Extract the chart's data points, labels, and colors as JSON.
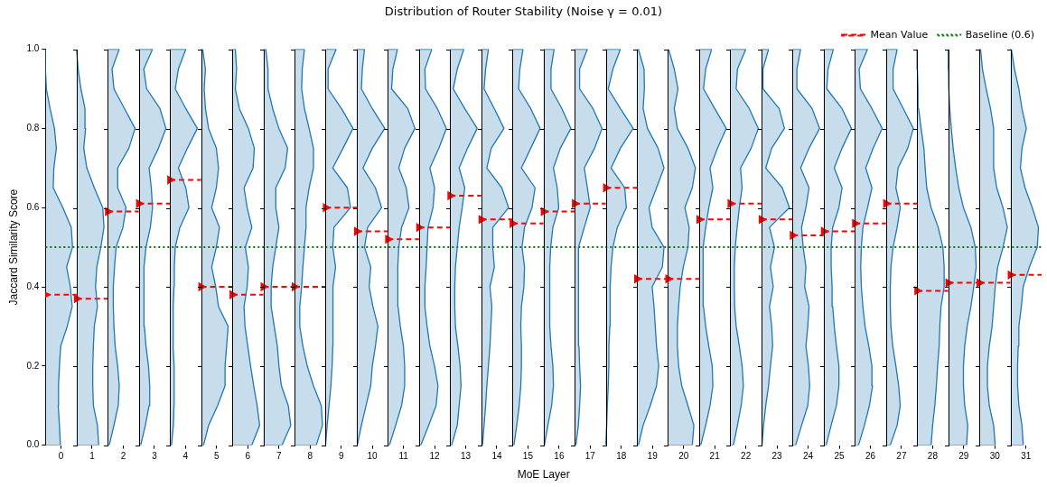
{
  "chart_data": {
    "type": "area",
    "title": "Distribution of Router Stability (Noise γ = 0.01)",
    "xlabel": "MoE Layer",
    "ylabel": "Jaccard Similarity Score",
    "xlim": [
      -0.5,
      31.5
    ],
    "xticks": [
      0,
      1,
      2,
      3,
      4,
      5,
      6,
      7,
      8,
      9,
      10,
      11,
      12,
      13,
      14,
      15,
      16,
      17,
      18,
      19,
      20,
      21,
      22,
      23,
      24,
      25,
      26,
      27,
      28,
      29,
      30,
      31
    ],
    "ylim": [
      0,
      1
    ],
    "yticks": [
      {
        "value": 0,
        "label": "0.0"
      },
      {
        "value": 0.2,
        "label": "0.2"
      },
      {
        "value": 0.4,
        "label": "0.4"
      },
      {
        "value": 0.6,
        "label": "0.6"
      },
      {
        "value": 0.8,
        "label": "0.8"
      },
      {
        "value": 1,
        "label": "1.0"
      }
    ],
    "grid": false,
    "legend": "top right",
    "ref_lines": [
      {
        "axis": "y",
        "value": 0.5,
        "label": "Baseline (0.6)",
        "color": "#008000",
        "line_style": "dotted"
      }
    ],
    "series": [
      {
        "color": "#1f77b4",
        "x": [
          -0.5,
          -0.02,
          -0.05,
          -0.09,
          -0.08,
          -0.05,
          -0.01,
          0.2,
          0.36,
          0.3,
          0.18,
          0.37,
          0.33,
          0.06,
          -0.25,
          -0.23,
          -0.15,
          -0.21,
          -0.35,
          -0.47,
          -0.5,
          -0.5,
          -0.5
        ],
        "values": [
          0,
          0,
          0.05,
          0.1,
          0.15,
          0.2,
          0.25,
          0.3,
          0.35,
          0.4,
          0.45,
          0.5,
          0.55,
          0.6,
          0.65,
          0.7,
          0.75,
          0.8,
          0.85,
          0.9,
          0.95,
          1,
          1
        ]
      },
      {
        "color": "#1f77b4",
        "x": [
          0.5,
          1.21,
          1.17,
          1.04,
          1.02,
          1.02,
          1.04,
          1.07,
          1.17,
          1.11,
          1.15,
          1.28,
          1.38,
          1.34,
          1.07,
          0.83,
          0.73,
          0.79,
          0.77,
          0.64,
          0.55,
          0.5,
          0.5
        ],
        "values": [
          0,
          0,
          0.05,
          0.1,
          0.15,
          0.2,
          0.25,
          0.3,
          0.35,
          0.4,
          0.45,
          0.5,
          0.55,
          0.6,
          0.65,
          0.7,
          0.75,
          0.8,
          0.85,
          0.9,
          0.95,
          1,
          1
        ]
      },
      {
        "color": "#1f77b4",
        "x": [
          1.5,
          1.55,
          1.7,
          1.84,
          1.87,
          1.82,
          1.74,
          1.7,
          1.68,
          1.68,
          1.72,
          1.77,
          1.99,
          2.09,
          1.82,
          1.82,
          2.18,
          2.38,
          2.04,
          1.7,
          1.64,
          1.87,
          1.5
        ],
        "values": [
          0,
          0,
          0.05,
          0.1,
          0.15,
          0.2,
          0.25,
          0.3,
          0.35,
          0.4,
          0.45,
          0.5,
          0.55,
          0.6,
          0.65,
          0.7,
          0.75,
          0.8,
          0.85,
          0.9,
          0.95,
          1,
          1
        ]
      },
      {
        "color": "#1f77b4",
        "x": [
          2.5,
          2.56,
          2.71,
          2.83,
          2.85,
          2.81,
          2.73,
          2.68,
          2.66,
          2.66,
          2.68,
          2.73,
          2.87,
          2.94,
          2.9,
          2.83,
          3.13,
          3.37,
          3.18,
          2.75,
          2.66,
          2.94,
          2.5
        ],
        "values": [
          0,
          0,
          0.05,
          0.1,
          0.15,
          0.2,
          0.25,
          0.3,
          0.35,
          0.4,
          0.45,
          0.5,
          0.55,
          0.6,
          0.65,
          0.7,
          0.75,
          0.8,
          0.85,
          0.9,
          0.95,
          1,
          1
        ]
      },
      {
        "color": "#1f77b4",
        "x": [
          3.5,
          3.55,
          3.61,
          3.63,
          3.64,
          3.63,
          3.6,
          3.6,
          3.61,
          3.63,
          3.64,
          3.67,
          3.82,
          4.11,
          4.01,
          3.77,
          4.06,
          4.38,
          4.01,
          3.67,
          3.77,
          4.01,
          3.5
        ],
        "values": [
          0,
          0,
          0.05,
          0.1,
          0.15,
          0.2,
          0.25,
          0.3,
          0.35,
          0.4,
          0.45,
          0.5,
          0.55,
          0.6,
          0.65,
          0.7,
          0.75,
          0.8,
          0.85,
          0.9,
          0.95,
          1,
          1
        ]
      },
      {
        "color": "#1f77b4",
        "x": [
          4.5,
          4.58,
          4.74,
          5.03,
          5.27,
          5.27,
          5.32,
          5.37,
          5.06,
          4.97,
          4.84,
          4.99,
          5.09,
          4.84,
          4.99,
          5.06,
          4.99,
          4.74,
          4.64,
          4.6,
          4.64,
          4.55,
          4.5
        ],
        "values": [
          0,
          0,
          0.05,
          0.1,
          0.15,
          0.2,
          0.25,
          0.3,
          0.35,
          0.4,
          0.45,
          0.5,
          0.55,
          0.6,
          0.65,
          0.7,
          0.75,
          0.8,
          0.85,
          0.9,
          0.95,
          1,
          1
        ]
      },
      {
        "color": "#1f77b4",
        "x": [
          5.5,
          6.13,
          6.38,
          6.3,
          6.19,
          6.09,
          6,
          5.91,
          5.88,
          5.98,
          6.02,
          5.92,
          6.13,
          5.98,
          5.88,
          6.17,
          6.21,
          6.02,
          5.73,
          5.6,
          5.64,
          5.6,
          5.5
        ],
        "values": [
          0,
          0,
          0.05,
          0.1,
          0.15,
          0.2,
          0.25,
          0.3,
          0.35,
          0.4,
          0.45,
          0.5,
          0.55,
          0.6,
          0.65,
          0.7,
          0.75,
          0.8,
          0.85,
          0.9,
          0.95,
          1,
          1
        ]
      },
      {
        "color": "#1f77b4",
        "x": [
          6.5,
          7.1,
          7.38,
          7.3,
          7.08,
          7,
          6.95,
          6.85,
          6.75,
          6.75,
          6.8,
          6.9,
          7,
          6.9,
          6.9,
          7.2,
          7.28,
          7,
          6.8,
          6.65,
          6.65,
          6.58,
          6.5
        ],
        "values": [
          0,
          0,
          0.05,
          0.1,
          0.15,
          0.2,
          0.25,
          0.3,
          0.35,
          0.4,
          0.45,
          0.5,
          0.55,
          0.6,
          0.65,
          0.7,
          0.75,
          0.8,
          0.85,
          0.9,
          0.95,
          1,
          1
        ]
      },
      {
        "color": "#1f77b4",
        "x": [
          7.5,
          8.2,
          8.4,
          8.36,
          8.11,
          7.91,
          7.77,
          7.67,
          7.67,
          7.73,
          7.77,
          7.82,
          7.87,
          7.87,
          7.97,
          8.11,
          8.11,
          7.97,
          7.82,
          7.73,
          7.75,
          7.82,
          7.5
        ],
        "values": [
          0,
          0,
          0.05,
          0.1,
          0.15,
          0.2,
          0.25,
          0.3,
          0.35,
          0.4,
          0.45,
          0.5,
          0.55,
          0.6,
          0.65,
          0.7,
          0.75,
          0.8,
          0.85,
          0.9,
          0.95,
          1,
          1
        ]
      },
      {
        "color": "#1f77b4",
        "x": [
          8.5,
          8.51,
          8.55,
          8.61,
          8.67,
          8.71,
          8.73,
          8.74,
          8.73,
          8.74,
          8.82,
          8.73,
          8.77,
          9.3,
          9.2,
          8.73,
          9.06,
          9.38,
          9.01,
          8.58,
          8.58,
          8.84,
          8.5
        ],
        "values": [
          0,
          0,
          0.05,
          0.1,
          0.15,
          0.2,
          0.25,
          0.3,
          0.35,
          0.4,
          0.45,
          0.5,
          0.55,
          0.6,
          0.65,
          0.7,
          0.75,
          0.8,
          0.85,
          0.9,
          0.95,
          1,
          1
        ]
      },
      {
        "color": "#1f77b4",
        "x": [
          9.5,
          9.52,
          9.65,
          9.8,
          9.95,
          10,
          10.1,
          10.18,
          10.02,
          9.9,
          9.95,
          9.75,
          9.85,
          10.3,
          10.1,
          9.7,
          10,
          10.4,
          10,
          9.65,
          9.68,
          9.75,
          9.5
        ],
        "values": [
          0,
          0,
          0.05,
          0.1,
          0.15,
          0.2,
          0.25,
          0.3,
          0.35,
          0.4,
          0.45,
          0.5,
          0.55,
          0.6,
          0.65,
          0.7,
          0.75,
          0.8,
          0.85,
          0.9,
          0.95,
          1,
          1
        ]
      },
      {
        "color": "#1f77b4",
        "x": [
          10.5,
          10.55,
          10.75,
          10.94,
          11.04,
          11.04,
          11,
          10.9,
          10.83,
          10.81,
          10.83,
          10.85,
          10.94,
          11.18,
          11.09,
          10.85,
          11.04,
          11.37,
          11.14,
          10.62,
          10.66,
          10.81,
          10.5
        ],
        "values": [
          0,
          0,
          0.05,
          0.1,
          0.15,
          0.2,
          0.25,
          0.3,
          0.35,
          0.4,
          0.45,
          0.5,
          0.55,
          0.6,
          0.65,
          0.7,
          0.75,
          0.8,
          0.85,
          0.9,
          0.95,
          1,
          1
        ]
      },
      {
        "color": "#1f77b4",
        "x": [
          11.5,
          11.56,
          11.81,
          12.05,
          12.11,
          12,
          11.85,
          11.76,
          11.69,
          11.69,
          11.73,
          11.76,
          11.79,
          11.95,
          12,
          11.85,
          12.14,
          12.38,
          12.09,
          11.71,
          11.69,
          11.91,
          11.5
        ],
        "values": [
          0,
          0,
          0.05,
          0.1,
          0.15,
          0.2,
          0.25,
          0.3,
          0.35,
          0.4,
          0.45,
          0.5,
          0.55,
          0.6,
          0.65,
          0.7,
          0.75,
          0.8,
          0.85,
          0.9,
          0.95,
          1,
          1
        ]
      },
      {
        "color": "#1f77b4",
        "x": [
          12.5,
          12.55,
          12.73,
          12.79,
          12.85,
          12.82,
          12.75,
          12.67,
          12.65,
          12.65,
          12.67,
          12.73,
          12.79,
          12.89,
          12.97,
          12.79,
          13.06,
          13.37,
          12.97,
          12.6,
          12.73,
          12.94,
          12.5
        ],
        "values": [
          0,
          0,
          0.05,
          0.1,
          0.15,
          0.2,
          0.25,
          0.3,
          0.35,
          0.4,
          0.45,
          0.5,
          0.55,
          0.6,
          0.65,
          0.7,
          0.75,
          0.8,
          0.85,
          0.9,
          0.95,
          1,
          1
        ]
      },
      {
        "color": "#1f77b4",
        "x": [
          13.5,
          13.54,
          13.59,
          13.64,
          13.68,
          13.73,
          13.78,
          13.81,
          13.84,
          13.78,
          13.92,
          13.87,
          13.87,
          14.38,
          14.16,
          13.68,
          13.82,
          14.23,
          13.92,
          13.59,
          13.64,
          13.73,
          13.5
        ],
        "values": [
          0,
          0,
          0.05,
          0.1,
          0.15,
          0.2,
          0.25,
          0.3,
          0.35,
          0.4,
          0.45,
          0.5,
          0.55,
          0.6,
          0.65,
          0.7,
          0.75,
          0.8,
          0.85,
          0.9,
          0.95,
          1,
          1
        ]
      },
      {
        "color": "#1f77b4",
        "x": [
          14.5,
          14.55,
          14.64,
          14.72,
          14.77,
          14.79,
          14.79,
          14.77,
          14.79,
          14.87,
          14.89,
          14.81,
          14.89,
          15.13,
          15.23,
          14.79,
          15.09,
          15.39,
          15.09,
          14.7,
          14.74,
          14.84,
          14.5
        ],
        "values": [
          0,
          0,
          0.05,
          0.1,
          0.15,
          0.2,
          0.25,
          0.3,
          0.35,
          0.4,
          0.45,
          0.5,
          0.55,
          0.6,
          0.65,
          0.7,
          0.75,
          0.8,
          0.85,
          0.9,
          0.95,
          1,
          1
        ]
      },
      {
        "color": "#1f77b4",
        "x": [
          15.5,
          15.53,
          15.64,
          15.76,
          15.82,
          15.8,
          15.74,
          15.7,
          15.7,
          15.7,
          15.7,
          15.73,
          15.8,
          15.99,
          15.94,
          15.82,
          16.04,
          16.38,
          16.09,
          15.74,
          15.74,
          15.84,
          15.5
        ],
        "values": [
          0,
          0,
          0.05,
          0.1,
          0.15,
          0.2,
          0.25,
          0.3,
          0.35,
          0.4,
          0.45,
          0.5,
          0.55,
          0.6,
          0.65,
          0.7,
          0.75,
          0.8,
          0.85,
          0.9,
          0.95,
          1,
          1
        ]
      },
      {
        "color": "#1f77b4",
        "x": [
          16.5,
          16.54,
          16.62,
          16.66,
          16.69,
          16.66,
          16.64,
          16.62,
          16.62,
          16.62,
          16.62,
          16.64,
          16.81,
          17,
          16.91,
          16.81,
          17.14,
          17.38,
          17.09,
          16.66,
          16.66,
          16.91,
          16.5
        ],
        "values": [
          0,
          0,
          0.05,
          0.1,
          0.15,
          0.2,
          0.25,
          0.3,
          0.35,
          0.4,
          0.45,
          0.5,
          0.55,
          0.6,
          0.65,
          0.7,
          0.75,
          0.8,
          0.85,
          0.9,
          0.95,
          1,
          1
        ]
      },
      {
        "color": "#1f77b4",
        "x": [
          17.5,
          17.51,
          17.53,
          17.55,
          17.58,
          17.6,
          17.6,
          17.63,
          17.65,
          17.63,
          17.67,
          17.73,
          17.87,
          18.16,
          18.11,
          17.67,
          17.97,
          18.38,
          17.97,
          17.58,
          17.73,
          17.97,
          17.5
        ],
        "values": [
          0,
          0,
          0.05,
          0.1,
          0.15,
          0.2,
          0.25,
          0.3,
          0.35,
          0.4,
          0.45,
          0.5,
          0.55,
          0.6,
          0.65,
          0.7,
          0.75,
          0.8,
          0.85,
          0.9,
          0.95,
          1,
          1
        ]
      },
      {
        "color": "#1f77b4",
        "x": [
          18.5,
          18.55,
          18.7,
          18.93,
          19.13,
          19.2,
          19.13,
          19.09,
          19.05,
          18.99,
          19.32,
          19.37,
          18.99,
          18.89,
          19.13,
          19.37,
          19.18,
          18.84,
          18.7,
          18.74,
          18.73,
          18.55,
          18.5
        ],
        "values": [
          0,
          0,
          0.05,
          0.1,
          0.15,
          0.2,
          0.25,
          0.3,
          0.35,
          0.4,
          0.45,
          0.5,
          0.55,
          0.6,
          0.65,
          0.7,
          0.75,
          0.8,
          0.85,
          0.9,
          0.95,
          1,
          1
        ]
      },
      {
        "color": "#1f77b4",
        "x": [
          19.5,
          20.28,
          20.33,
          20.14,
          19.94,
          19.84,
          19.8,
          19.8,
          19.84,
          19.89,
          19.99,
          20.14,
          20.18,
          20.04,
          20.28,
          20.38,
          20.14,
          19.8,
          19.7,
          19.82,
          19.7,
          19.52,
          19.5
        ],
        "values": [
          0,
          0,
          0.05,
          0.1,
          0.15,
          0.2,
          0.25,
          0.3,
          0.35,
          0.4,
          0.45,
          0.5,
          0.55,
          0.6,
          0.65,
          0.7,
          0.75,
          0.8,
          0.85,
          0.9,
          0.95,
          1,
          1
        ]
      },
      {
        "color": "#1f77b4",
        "x": [
          20.5,
          20.55,
          20.71,
          20.85,
          20.94,
          20.92,
          20.81,
          20.71,
          20.64,
          20.62,
          20.62,
          20.64,
          20.71,
          20.81,
          20.94,
          20.85,
          21.09,
          21.37,
          21,
          20.64,
          20.71,
          20.9,
          20.5
        ],
        "values": [
          0,
          0,
          0.05,
          0.1,
          0.15,
          0.2,
          0.25,
          0.3,
          0.35,
          0.4,
          0.45,
          0.5,
          0.55,
          0.6,
          0.65,
          0.7,
          0.75,
          0.8,
          0.85,
          0.9,
          0.95,
          1,
          1
        ]
      },
      {
        "color": "#1f77b4",
        "x": [
          21.5,
          21.6,
          21.73,
          21.85,
          21.92,
          21.88,
          21.79,
          21.69,
          21.64,
          21.63,
          21.63,
          21.66,
          21.72,
          21.79,
          21.88,
          21.83,
          22.17,
          22.4,
          22.11,
          21.69,
          21.73,
          22,
          21.5
        ],
        "values": [
          0,
          0,
          0.05,
          0.1,
          0.15,
          0.2,
          0.25,
          0.3,
          0.35,
          0.4,
          0.45,
          0.5,
          0.55,
          0.6,
          0.65,
          0.7,
          0.75,
          0.8,
          0.85,
          0.9,
          0.95,
          1,
          1
        ]
      },
      {
        "color": "#1f77b4",
        "x": [
          22.5,
          22.52,
          22.57,
          22.64,
          22.73,
          22.79,
          22.86,
          22.83,
          22.76,
          22.88,
          22.79,
          22.92,
          22.76,
          23.4,
          23.17,
          22.64,
          22.83,
          23.24,
          23.07,
          22.55,
          22.55,
          22.73,
          22.5
        ],
        "values": [
          0,
          0,
          0.05,
          0.1,
          0.15,
          0.2,
          0.25,
          0.3,
          0.35,
          0.4,
          0.45,
          0.5,
          0.55,
          0.6,
          0.65,
          0.7,
          0.75,
          0.8,
          0.85,
          0.9,
          0.95,
          1,
          1
        ]
      },
      {
        "color": "#1f77b4",
        "x": [
          23.5,
          23.6,
          23.79,
          23.99,
          24.05,
          24.01,
          23.93,
          23.99,
          24.03,
          23.89,
          23.93,
          23.84,
          23.79,
          23.93,
          24.03,
          23.76,
          24.03,
          24.37,
          24.13,
          23.64,
          23.64,
          23.76,
          23.5
        ],
        "values": [
          0,
          0,
          0.05,
          0.1,
          0.15,
          0.2,
          0.25,
          0.3,
          0.35,
          0.4,
          0.45,
          0.5,
          0.55,
          0.6,
          0.65,
          0.7,
          0.75,
          0.8,
          0.85,
          0.9,
          0.95,
          1,
          1
        ]
      },
      {
        "color": "#1f77b4",
        "x": [
          24.5,
          24.58,
          24.74,
          24.91,
          24.99,
          24.99,
          24.91,
          24.84,
          24.79,
          24.77,
          24.74,
          24.74,
          24.79,
          24.99,
          25.09,
          24.84,
          25.09,
          25.39,
          25.09,
          24.6,
          24.64,
          24.81,
          24.5
        ],
        "values": [
          0,
          0,
          0.05,
          0.1,
          0.15,
          0.2,
          0.25,
          0.3,
          0.35,
          0.4,
          0.45,
          0.5,
          0.55,
          0.6,
          0.65,
          0.7,
          0.75,
          0.8,
          0.85,
          0.9,
          0.95,
          1,
          1
        ]
      },
      {
        "color": "#1f77b4",
        "x": [
          25.5,
          25.62,
          25.81,
          25.97,
          26.07,
          26.05,
          25.95,
          25.83,
          25.76,
          25.71,
          25.69,
          25.71,
          25.76,
          25.91,
          26.05,
          25.85,
          26.09,
          26.38,
          26.05,
          25.68,
          25.64,
          25.91,
          25.5
        ],
        "values": [
          0,
          0,
          0.05,
          0.1,
          0.15,
          0.2,
          0.25,
          0.3,
          0.35,
          0.4,
          0.45,
          0.5,
          0.55,
          0.6,
          0.65,
          0.7,
          0.75,
          0.8,
          0.85,
          0.9,
          0.95,
          1,
          1
        ]
      },
      {
        "color": "#1f77b4",
        "x": [
          26.5,
          26.64,
          26.86,
          26.96,
          26.91,
          26.82,
          26.72,
          26.66,
          26.64,
          26.64,
          26.66,
          26.73,
          26.86,
          26.96,
          26.82,
          26.89,
          27.2,
          27.38,
          27.06,
          26.73,
          26.73,
          26.86,
          26.5
        ],
        "values": [
          0,
          0,
          0.05,
          0.1,
          0.15,
          0.2,
          0.25,
          0.3,
          0.35,
          0.4,
          0.45,
          0.5,
          0.55,
          0.6,
          0.65,
          0.7,
          0.75,
          0.8,
          0.85,
          0.9,
          0.95,
          1,
          1
        ]
      },
      {
        "color": "#1f77b4",
        "x": [
          27.5,
          27.95,
          28,
          28.07,
          28.12,
          28.16,
          28.21,
          28.23,
          28.27,
          28.37,
          28.37,
          28.33,
          28.18,
          27.95,
          27.81,
          27.76,
          27.72,
          27.63,
          27.55,
          27.53,
          27.51,
          27.5,
          27.5
        ],
        "values": [
          0,
          0,
          0.05,
          0.1,
          0.15,
          0.2,
          0.25,
          0.3,
          0.35,
          0.4,
          0.45,
          0.5,
          0.55,
          0.6,
          0.65,
          0.7,
          0.75,
          0.8,
          0.85,
          0.9,
          0.95,
          1,
          1
        ]
      },
      {
        "color": "#1f77b4",
        "x": [
          28.5,
          29.09,
          29.13,
          29.03,
          28.99,
          28.99,
          29.03,
          29.11,
          29.23,
          29.32,
          29.4,
          29.37,
          29.23,
          28.99,
          28.84,
          28.74,
          28.66,
          28.6,
          28.55,
          28.52,
          28.51,
          28.5,
          28.5
        ],
        "values": [
          0,
          0,
          0.05,
          0.1,
          0.15,
          0.2,
          0.25,
          0.3,
          0.35,
          0.4,
          0.45,
          0.5,
          0.55,
          0.6,
          0.65,
          0.7,
          0.75,
          0.8,
          0.85,
          0.9,
          0.95,
          1,
          1
        ]
      },
      {
        "color": "#1f77b4",
        "x": [
          29.5,
          30.01,
          29.96,
          29.82,
          29.76,
          29.76,
          29.82,
          29.91,
          29.96,
          30.01,
          30.09,
          30.26,
          30.4,
          30.26,
          30.06,
          29.96,
          29.96,
          29.96,
          29.86,
          29.72,
          29.6,
          29.54,
          29.5
        ],
        "values": [
          0,
          0,
          0.05,
          0.1,
          0.15,
          0.2,
          0.25,
          0.3,
          0.35,
          0.4,
          0.45,
          0.5,
          0.55,
          0.6,
          0.65,
          0.7,
          0.75,
          0.8,
          0.85,
          0.9,
          0.95,
          1,
          1
        ]
      },
      {
        "color": "#1f77b4",
        "x": [
          30.5,
          30.91,
          30.87,
          30.77,
          30.73,
          30.73,
          30.75,
          30.77,
          30.85,
          30.91,
          31.11,
          31.36,
          31.4,
          31.2,
          30.97,
          30.82,
          30.87,
          31.01,
          30.87,
          30.77,
          30.63,
          30.53,
          30.5
        ],
        "values": [
          0,
          0,
          0.05,
          0.1,
          0.15,
          0.2,
          0.25,
          0.3,
          0.35,
          0.4,
          0.45,
          0.5,
          0.55,
          0.6,
          0.65,
          0.7,
          0.75,
          0.8,
          0.85,
          0.9,
          0.95,
          1,
          1
        ]
      },
      {
        "name": "Mean Value",
        "type": "line",
        "color": "#ff0000",
        "line_style": "dashed",
        "marker": "triangle",
        "x": [
          -0.5,
          0.5,
          0.5,
          1.5,
          1.5,
          2.5,
          2.5,
          3.5,
          3.5,
          4.5,
          4.5,
          5.5,
          5.5,
          6.5,
          6.5,
          7.5,
          7.5,
          8.5,
          8.5,
          9.5,
          9.5,
          10.5,
          10.5,
          11.5,
          11.5,
          12.5,
          12.5,
          13.5,
          13.5,
          14.5,
          14.5,
          15.5,
          15.5,
          16.5,
          16.5,
          17.5,
          17.5,
          18.5,
          18.5,
          19.5,
          19.5,
          20.5,
          20.5,
          21.5,
          21.5,
          22.5,
          22.5,
          23.5,
          23.5,
          24.5,
          24.5,
          25.5,
          25.5,
          26.5,
          26.5,
          27.5,
          27.5,
          28.5,
          28.5,
          29.5,
          29.5,
          30.5,
          30.5,
          31.5
        ],
        "values": [
          0.38,
          0.38,
          0.37,
          0.37,
          0.59,
          0.59,
          0.61,
          0.61,
          0.67,
          0.67,
          0.4,
          0.4,
          0.38,
          0.38,
          0.4,
          0.4,
          0.4,
          0.4,
          0.6,
          0.6,
          0.54,
          0.54,
          0.52,
          0.52,
          0.55,
          0.55,
          0.63,
          0.63,
          0.57,
          0.57,
          0.56,
          0.56,
          0.59,
          0.59,
          0.61,
          0.61,
          0.65,
          0.65,
          0.42,
          0.42,
          0.42,
          0.42,
          0.57,
          0.57,
          0.61,
          0.61,
          0.57,
          0.57,
          0.53,
          0.53,
          0.54,
          0.54,
          0.56,
          0.56,
          0.61,
          0.61,
          0.39,
          0.39,
          0.41,
          0.41,
          0.41,
          0.41,
          0.43,
          0.43
        ]
      }
    ]
  }
}
